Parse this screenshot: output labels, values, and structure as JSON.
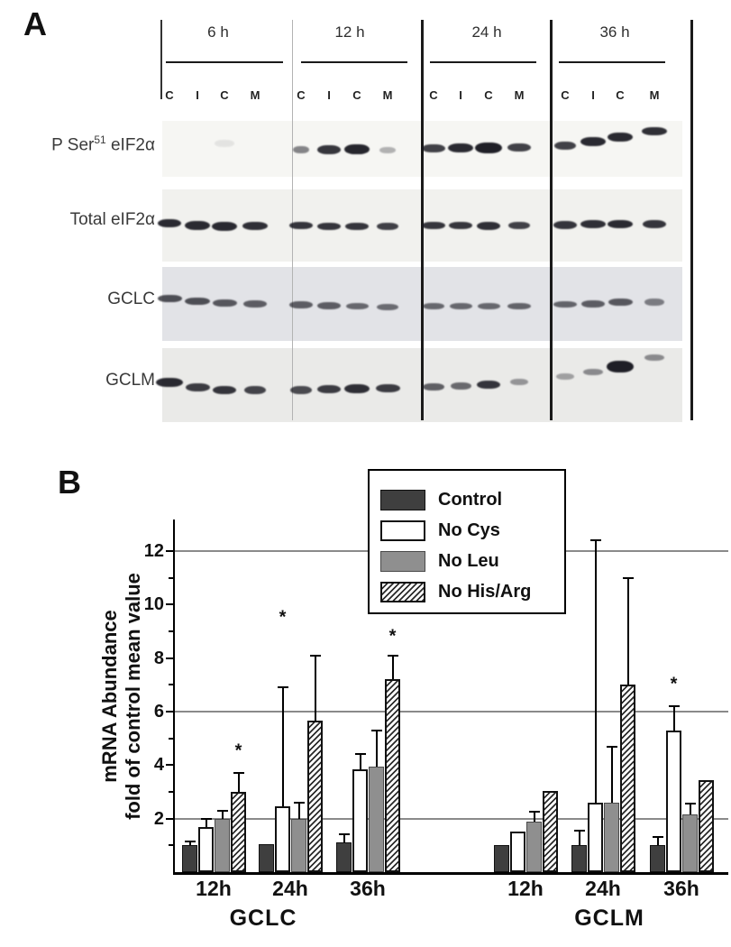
{
  "figure_labels": {
    "panel_a": "A",
    "panel_b": "B"
  },
  "panel_a": {
    "time_points": [
      "6 h",
      "12 h",
      "24 h",
      "36 h"
    ],
    "lane_labels": [
      "C",
      "I",
      "C",
      "M"
    ],
    "row_labels": [
      {
        "pre": "P Ser",
        "sup": "51",
        "post": " eIF2α"
      },
      {
        "pre": "Total eIF2α",
        "sup": "",
        "post": ""
      },
      {
        "pre": "GCLC",
        "sup": "",
        "post": ""
      },
      {
        "pre": "GCLM",
        "sup": "",
        "post": ""
      }
    ],
    "blot_bands": {
      "pser51": [
        [
          2,
          155,
          0.08,
          22,
          8
        ],
        [
          4,
          162,
          0.5,
          18,
          8
        ],
        [
          5,
          161,
          0.85,
          26,
          10
        ],
        [
          6,
          160,
          0.92,
          28,
          11
        ],
        [
          7,
          163,
          0.3,
          18,
          7
        ],
        [
          8,
          160,
          0.8,
          26,
          9
        ],
        [
          9,
          159,
          0.9,
          28,
          10
        ],
        [
          10,
          158,
          0.95,
          30,
          12
        ],
        [
          11,
          159,
          0.8,
          26,
          9
        ],
        [
          12,
          157,
          0.8,
          24,
          9
        ],
        [
          13,
          152,
          0.9,
          28,
          10
        ],
        [
          14,
          147,
          0.9,
          28,
          10
        ],
        [
          15,
          141,
          0.88,
          28,
          9
        ]
      ],
      "total": [
        [
          0,
          243,
          0.9,
          26,
          9
        ],
        [
          1,
          245,
          0.9,
          28,
          10
        ],
        [
          2,
          246,
          0.9,
          28,
          10
        ],
        [
          3,
          246,
          0.88,
          28,
          9
        ],
        [
          4,
          246,
          0.85,
          26,
          8
        ],
        [
          5,
          247,
          0.85,
          26,
          8
        ],
        [
          6,
          247,
          0.85,
          26,
          8
        ],
        [
          7,
          247,
          0.8,
          24,
          8
        ],
        [
          8,
          246,
          0.85,
          26,
          8
        ],
        [
          9,
          246,
          0.85,
          26,
          8
        ],
        [
          10,
          246,
          0.88,
          26,
          9
        ],
        [
          11,
          246,
          0.8,
          24,
          8
        ],
        [
          12,
          245,
          0.85,
          26,
          9
        ],
        [
          13,
          244,
          0.88,
          28,
          9
        ],
        [
          14,
          244,
          0.9,
          28,
          9
        ],
        [
          15,
          244,
          0.85,
          26,
          9
        ]
      ],
      "gclc": [
        [
          0,
          327,
          0.72,
          27,
          8
        ],
        [
          1,
          330,
          0.72,
          28,
          8
        ],
        [
          2,
          332,
          0.68,
          27,
          8
        ],
        [
          3,
          333,
          0.65,
          26,
          8
        ],
        [
          4,
          334,
          0.65,
          26,
          8
        ],
        [
          5,
          335,
          0.65,
          26,
          8
        ],
        [
          6,
          336,
          0.6,
          25,
          7
        ],
        [
          7,
          337,
          0.58,
          24,
          7
        ],
        [
          8,
          336,
          0.6,
          24,
          7
        ],
        [
          9,
          336,
          0.6,
          25,
          7
        ],
        [
          10,
          336,
          0.6,
          25,
          7
        ],
        [
          11,
          336,
          0.62,
          26,
          7
        ],
        [
          12,
          334,
          0.62,
          26,
          7
        ],
        [
          13,
          333,
          0.65,
          26,
          8
        ],
        [
          14,
          331,
          0.68,
          27,
          8
        ],
        [
          15,
          331,
          0.5,
          22,
          8
        ]
      ],
      "gclm": [
        [
          0,
          419,
          0.9,
          30,
          10
        ],
        [
          1,
          425,
          0.82,
          27,
          9
        ],
        [
          2,
          428,
          0.85,
          26,
          9
        ],
        [
          3,
          428,
          0.78,
          24,
          9
        ],
        [
          4,
          428,
          0.75,
          24,
          9
        ],
        [
          5,
          427,
          0.82,
          26,
          9
        ],
        [
          6,
          426,
          0.88,
          28,
          10
        ],
        [
          7,
          426,
          0.82,
          27,
          9
        ],
        [
          8,
          425,
          0.65,
          24,
          8
        ],
        [
          9,
          424,
          0.6,
          23,
          8
        ],
        [
          10,
          422,
          0.85,
          26,
          9
        ],
        [
          11,
          420,
          0.4,
          20,
          7
        ],
        [
          12,
          414,
          0.35,
          20,
          7
        ],
        [
          13,
          409,
          0.45,
          22,
          7
        ],
        [
          14,
          400,
          0.95,
          30,
          13
        ],
        [
          15,
          393,
          0.45,
          22,
          7
        ]
      ]
    }
  },
  "chart_data": {
    "type": "bar",
    "title": "",
    "ylabel_line1": "mRNA Abundance",
    "ylabel_line2": "fold of control mean value",
    "ylim": [
      0,
      13.2
    ],
    "yticks": [
      2,
      4,
      6,
      8,
      10,
      12
    ],
    "minor_yticks": [
      1,
      3,
      5,
      7,
      9,
      11
    ],
    "gridline_values": [
      2,
      6,
      12
    ],
    "grid": true,
    "legend_position": "top-center",
    "legend_entries": [
      {
        "label": "Control",
        "style": "dark"
      },
      {
        "label": "No Cys",
        "style": "white"
      },
      {
        "label": "No Leu",
        "style": "gray"
      },
      {
        "label": "No His/Arg",
        "style": "hatch"
      }
    ],
    "star_symbol": "*",
    "series": [
      "Control",
      "No Cys",
      "No Leu",
      "No His/Arg"
    ],
    "group_axis_labels": [
      "GCLC",
      "GCLM"
    ],
    "groups": [
      {
        "gene": "GCLC",
        "time": "12h",
        "values": [
          1.0,
          1.7,
          2.0,
          3.0
        ],
        "err_top": [
          1.15,
          2.0,
          2.3,
          3.7
        ],
        "star_series": 3,
        "star_y": 4.5
      },
      {
        "gene": "GCLC",
        "time": "24h",
        "values": [
          1.05,
          2.45,
          2.0,
          5.65
        ],
        "err_top": [
          null,
          6.9,
          2.6,
          8.1
        ],
        "star_series": 1,
        "star_y": 9.5
      },
      {
        "gene": "GCLC",
        "time": "36h",
        "values": [
          1.1,
          3.85,
          3.95,
          7.2
        ],
        "err_top": [
          1.4,
          4.4,
          5.3,
          8.1
        ],
        "star_series": 3,
        "star_y": 8.8
      },
      {
        "gene": "GCLM",
        "time": "12h",
        "values": [
          1.0,
          1.5,
          1.9,
          3.05
        ],
        "err_top": [
          null,
          null,
          2.25,
          null
        ],
        "star_series": null,
        "star_y": null
      },
      {
        "gene": "GCLM",
        "time": "24h",
        "values": [
          1.0,
          2.6,
          2.6,
          7.0
        ],
        "err_top": [
          1.55,
          12.4,
          4.7,
          11.0
        ],
        "star_series": null,
        "star_y": null
      },
      {
        "gene": "GCLM",
        "time": "36h",
        "values": [
          1.0,
          5.3,
          2.15,
          3.45
        ],
        "err_top": [
          1.3,
          6.2,
          2.55,
          null
        ],
        "star_series": 1,
        "star_y": 7.0
      }
    ],
    "colors": {
      "dark": "#3f3f3f",
      "gray": "#8f8f8f",
      "white": "#ffffff",
      "hatch_fg": "#2a2a2a",
      "grid": "#8a8a8a",
      "axis": "#000000"
    }
  }
}
